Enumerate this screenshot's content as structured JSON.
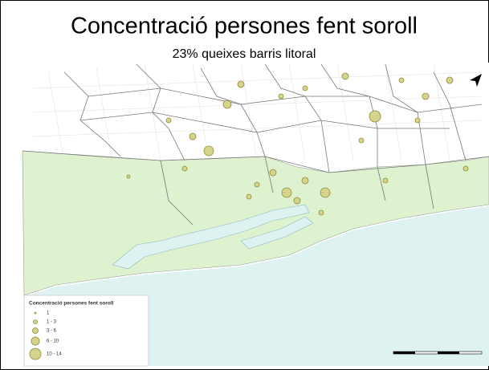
{
  "title": "Concentració persones fent soroll",
  "subtitle": "23% queixes barris litoral",
  "legend": {
    "title": "Concentració persones fent soroll",
    "items": [
      "1",
      "1 - 3",
      "3 - 6",
      "6 - 10",
      "10 - 14"
    ]
  }
}
